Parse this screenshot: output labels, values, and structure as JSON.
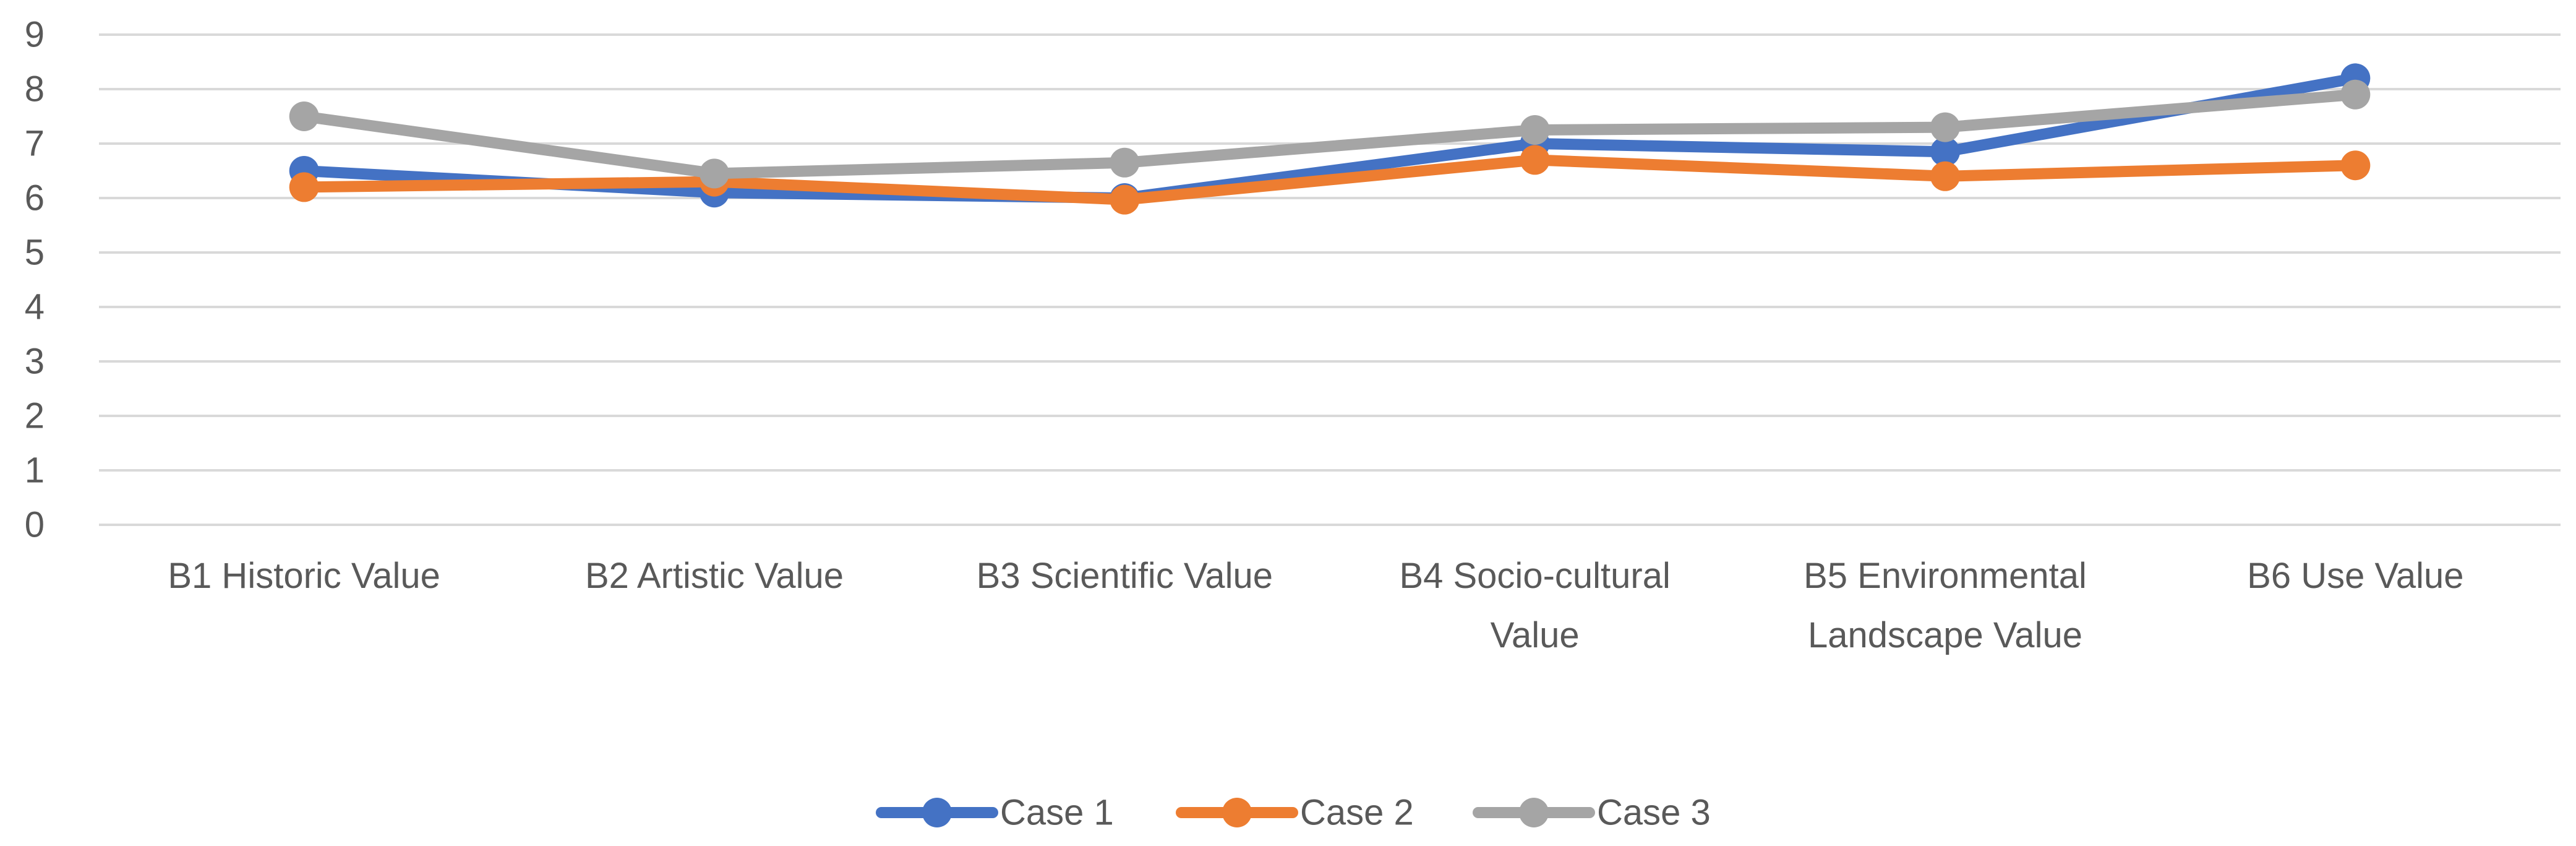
{
  "chart_data": {
    "type": "line",
    "title": "",
    "xlabel": "",
    "ylabel": "",
    "ylim": [
      0,
      9
    ],
    "yticks": [
      0,
      1,
      2,
      3,
      4,
      5,
      6,
      7,
      8,
      9
    ],
    "grid": true,
    "legend_position": "bottom",
    "categories": [
      [
        "B1 Historic Value"
      ],
      [
        "B2 Artistic Value"
      ],
      [
        "B3 Scientific Value"
      ],
      [
        "B4 Socio-cultural",
        "Value"
      ],
      [
        "B5 Environmental",
        "Landscape Value"
      ],
      [
        "B6 Use Value"
      ]
    ],
    "series": [
      {
        "name": "Case 1",
        "color": "#4472C4",
        "values": [
          6.5,
          6.1,
          6.0,
          7.0,
          6.85,
          8.2
        ]
      },
      {
        "name": "Case 2",
        "color": "#ED7D31",
        "values": [
          6.2,
          6.3,
          5.97,
          6.7,
          6.4,
          6.6
        ]
      },
      {
        "name": "Case 3",
        "color": "#A5A5A5",
        "values": [
          7.5,
          6.45,
          6.65,
          7.25,
          7.3,
          7.9
        ]
      }
    ]
  }
}
